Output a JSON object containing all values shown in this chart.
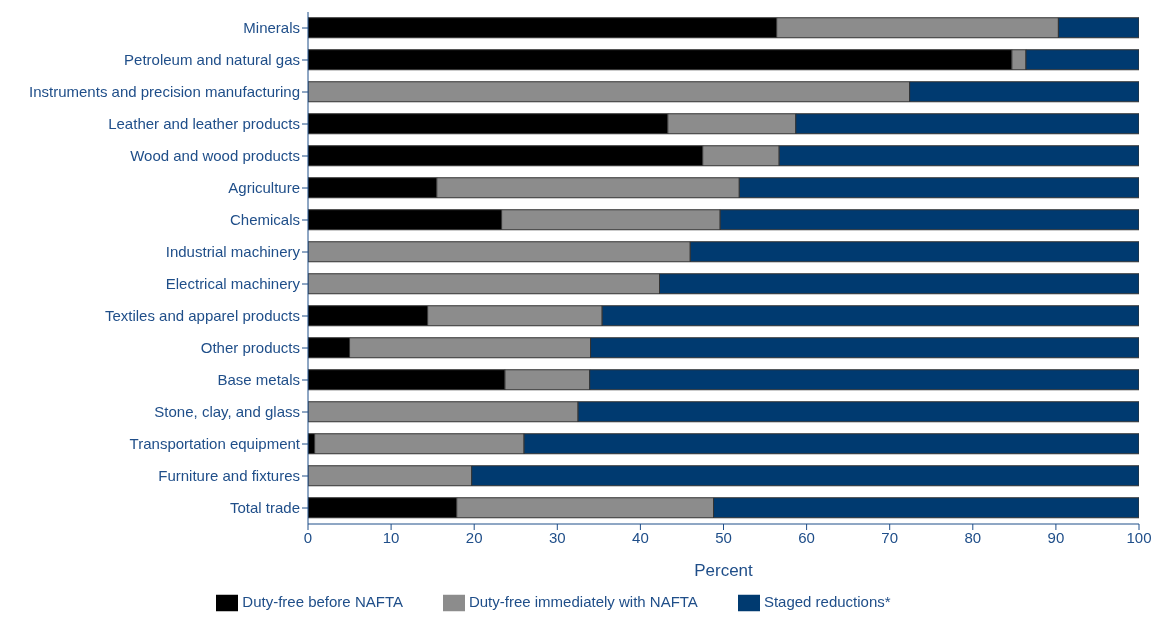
{
  "chart_data": {
    "type": "bar",
    "orientation": "horizontal",
    "stacked": true,
    "xlabel": "Percent",
    "categories": [
      "Minerals",
      "Petroleum and natural gas",
      "Instruments and precision manufacturing",
      "Leather and leather products",
      "Wood and wood products",
      "Agriculture",
      "Chemicals",
      "Industrial machinery",
      "Electrical machinery",
      "Textiles and apparel products",
      "Other products",
      "Base metals",
      "Stone, clay, and glass",
      "Transportation equipment",
      "Furniture and fixtures",
      "Total trade"
    ],
    "series": [
      {
        "name": "Duty-free before NAFTA",
        "color": "#000000",
        "values": [
          56.4,
          84.7,
          0,
          43.3,
          47.5,
          15.5,
          23.3,
          0,
          0,
          14.4,
          5.0,
          23.7,
          0,
          0.8,
          0,
          17.9
        ]
      },
      {
        "name": "Duty-free immediately with NAFTA",
        "color": "#8c8c8c",
        "values": [
          33.9,
          1.7,
          72.4,
          15.4,
          9.2,
          36.4,
          26.3,
          46.0,
          42.3,
          21.0,
          29.0,
          10.2,
          32.5,
          25.2,
          19.7,
          30.9
        ]
      },
      {
        "name": "Staged reductions*",
        "color": "#003a70",
        "values": [
          9.7,
          13.6,
          27.6,
          41.3,
          43.3,
          48.1,
          50.4,
          54.0,
          57.7,
          64.6,
          66.0,
          66.1,
          67.5,
          74.0,
          80.3,
          51.2
        ]
      }
    ],
    "xlim": [
      0,
      100
    ],
    "xticks": [
      0,
      10,
      20,
      30,
      40,
      50,
      60,
      70,
      80,
      90,
      100
    ],
    "legend": "bottom"
  }
}
